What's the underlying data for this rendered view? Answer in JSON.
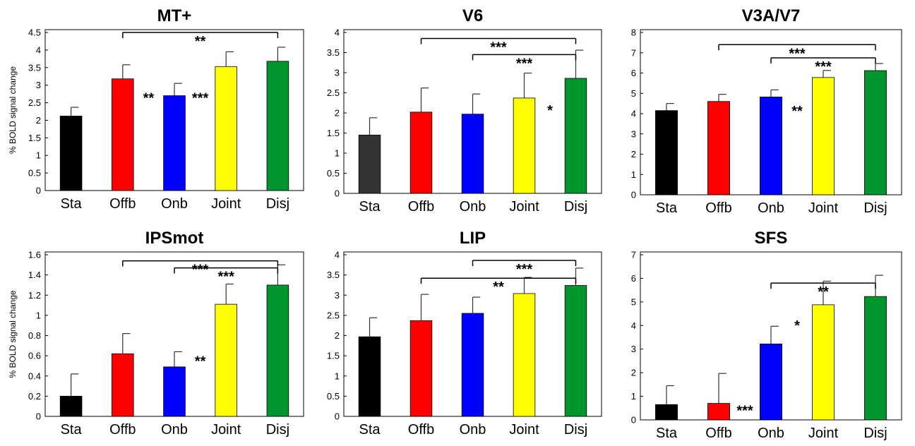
{
  "chart_data": [
    {
      "type": "bar",
      "title": "MT+",
      "ylabel": "% BOLD signal change",
      "categories": [
        "Sta",
        "Offb",
        "Onb",
        "Joint",
        "Disj"
      ],
      "values": [
        2.12,
        3.18,
        2.7,
        3.53,
        3.68
      ],
      "errors": [
        0.25,
        0.4,
        0.35,
        0.42,
        0.4
      ],
      "colors": [
        "#000000",
        "#ff0000",
        "#0000ff",
        "#ffff00",
        "#00962d"
      ],
      "ylim": [
        0,
        4.5
      ],
      "yticks": [
        "0",
        "0.5",
        "1",
        "1.5",
        "2",
        "2.5",
        "3",
        "3.5",
        "4",
        "4.5"
      ],
      "ytick_values": [
        0,
        0.5,
        1,
        1.5,
        2,
        2.5,
        3,
        3.5,
        4,
        4.5
      ],
      "brackets": [
        {
          "from": 1,
          "to": 4,
          "y": 4.5,
          "label": "**"
        }
      ],
      "annotations": [
        {
          "after": 1,
          "y": 2.5,
          "label": "**"
        },
        {
          "after": 2,
          "y": 2.5,
          "label": "***"
        }
      ]
    },
    {
      "type": "bar",
      "title": "V6",
      "ylabel": "",
      "categories": [
        "Sta",
        "Offb",
        "Onb",
        "Joint",
        "Disj"
      ],
      "values": [
        1.45,
        2.02,
        1.97,
        2.37,
        2.86
      ],
      "errors": [
        0.43,
        0.6,
        0.5,
        0.62,
        0.7
      ],
      "colors": [
        "#333333",
        "#ff0000",
        "#0000ff",
        "#ffff00",
        "#00962d"
      ],
      "ylim": [
        0,
        4
      ],
      "yticks": [
        "0",
        "0.5",
        "1",
        "1.5",
        "2",
        "2.5",
        "3",
        "3.5",
        "4"
      ],
      "ytick_values": [
        0,
        0.5,
        1,
        1.5,
        2,
        2.5,
        3,
        3.5,
        4
      ],
      "brackets": [
        {
          "from": 1,
          "to": 4,
          "y": 3.85,
          "label": "***"
        },
        {
          "from": 2,
          "to": 4,
          "y": 3.45,
          "label": "***"
        }
      ],
      "annotations": [
        {
          "after": 3,
          "y": 1.95,
          "label": "*"
        }
      ]
    },
    {
      "type": "bar",
      "title": "V3A/V7",
      "ylabel": "",
      "categories": [
        "Sta",
        "Offb",
        "Onb",
        "Joint",
        "Disj"
      ],
      "values": [
        4.15,
        4.6,
        4.82,
        5.78,
        6.12
      ],
      "errors": [
        0.35,
        0.35,
        0.35,
        0.35,
        0.35
      ],
      "colors": [
        "#000000",
        "#ff0000",
        "#0000ff",
        "#ffff00",
        "#00962d"
      ],
      "ylim": [
        0,
        8
      ],
      "yticks": [
        "0",
        "1",
        "2",
        "3",
        "4",
        "5",
        "6",
        "7",
        "8"
      ],
      "ytick_values": [
        0,
        1,
        2,
        3,
        4,
        5,
        6,
        7,
        8
      ],
      "brackets": [
        {
          "from": 1,
          "to": 4,
          "y": 7.4,
          "label": "***"
        },
        {
          "from": 2,
          "to": 4,
          "y": 6.75,
          "label": "***"
        }
      ],
      "annotations": [
        {
          "after": 2,
          "y": 3.9,
          "label": "**"
        }
      ]
    },
    {
      "type": "bar",
      "title": "IPSmot",
      "ylabel": "% BOLD signal change",
      "categories": [
        "Sta",
        "Offb",
        "Onb",
        "Joint",
        "Disj"
      ],
      "values": [
        0.2,
        0.62,
        0.49,
        1.11,
        1.3
      ],
      "errors": [
        0.22,
        0.2,
        0.15,
        0.2,
        0.2
      ],
      "colors": [
        "#000000",
        "#ff0000",
        "#0000ff",
        "#ffff00",
        "#00962d"
      ],
      "ylim": [
        0,
        1.6
      ],
      "yticks": [
        "0",
        "0.2",
        "0.4",
        "0.6",
        "0.8",
        "1",
        "1.2",
        "1.4",
        "1.6"
      ],
      "ytick_values": [
        0,
        0.2,
        0.4,
        0.6,
        0.8,
        1.0,
        1.2,
        1.4,
        1.6
      ],
      "brackets": [
        {
          "from": 1,
          "to": 4,
          "y": 1.54,
          "label": "***"
        },
        {
          "from": 2,
          "to": 4,
          "y": 1.47,
          "label": "***"
        }
      ],
      "annotations": [
        {
          "after": 2,
          "y": 0.5,
          "label": "**"
        }
      ]
    },
    {
      "type": "bar",
      "title": "LIP",
      "ylabel": "",
      "categories": [
        "Sta",
        "Offb",
        "Onb",
        "Joint",
        "Disj"
      ],
      "values": [
        1.97,
        2.37,
        2.55,
        3.04,
        3.24
      ],
      "errors": [
        0.47,
        0.65,
        0.4,
        0.4,
        0.43
      ],
      "colors": [
        "#000000",
        "#ff0000",
        "#0000ff",
        "#ffff00",
        "#00962d"
      ],
      "ylim": [
        0,
        4
      ],
      "yticks": [
        "0",
        "0.5",
        "1",
        "1.5",
        "2",
        "2.5",
        "3",
        "3.5",
        "4"
      ],
      "ytick_values": [
        0,
        0.5,
        1,
        1.5,
        2,
        2.5,
        3,
        3.5,
        4
      ],
      "brackets": [
        {
          "from": 2,
          "to": 4,
          "y": 3.86,
          "label": "***"
        },
        {
          "from": 1,
          "to": 4,
          "y": 3.42,
          "label": "**"
        }
      ],
      "annotations": []
    },
    {
      "type": "bar",
      "title": "SFS",
      "ylabel": "",
      "categories": [
        "Sta",
        "Offb",
        "Onb",
        "Joint",
        "Disj"
      ],
      "values": [
        0.65,
        0.7,
        3.22,
        4.88,
        5.23
      ],
      "errors": [
        0.8,
        1.27,
        0.75,
        1.0,
        0.9
      ],
      "colors": [
        "#000000",
        "#ff0000",
        "#0000ff",
        "#ffff00",
        "#00962d"
      ],
      "ylim": [
        0,
        7
      ],
      "yticks": [
        "0",
        "1",
        "2",
        "3",
        "4",
        "5",
        "6",
        "7"
      ],
      "ytick_values": [
        0,
        1,
        2,
        3,
        4,
        5,
        6,
        7
      ],
      "brackets": [
        {
          "from": 2,
          "to": 4,
          "y": 5.8,
          "label": "**"
        }
      ],
      "annotations": [
        {
          "after": 1,
          "y": 0.2,
          "label": "***"
        },
        {
          "after": 2,
          "y": 3.8,
          "label": "*"
        }
      ]
    }
  ]
}
